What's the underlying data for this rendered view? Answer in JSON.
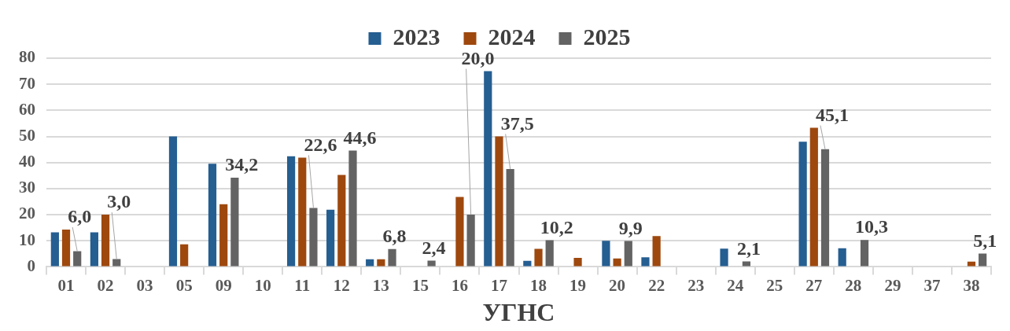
{
  "chart_data": {
    "type": "bar",
    "xlabel": "УГНС",
    "categories": [
      "01",
      "02",
      "03",
      "05",
      "09",
      "10",
      "11",
      "12",
      "13",
      "15",
      "16",
      "17",
      "18",
      "19",
      "20",
      "22",
      "23",
      "24",
      "25",
      "27",
      "28",
      "29",
      "37",
      "38"
    ],
    "series": [
      {
        "name": "2023",
        "color": "#255e91",
        "values": [
          13.2,
          13.2,
          null,
          50,
          39.5,
          null,
          42.4,
          21.9,
          2.9,
          null,
          null,
          75,
          2.3,
          null,
          10,
          3.7,
          null,
          7,
          null,
          48,
          7.1,
          null,
          null,
          null
        ]
      },
      {
        "name": "2024",
        "color": "#9e480e",
        "values": [
          14.3,
          20,
          null,
          8.6,
          24,
          null,
          41.9,
          35.2,
          2.9,
          null,
          26.8,
          50,
          6.9,
          3.4,
          3.2,
          11.8,
          null,
          null,
          null,
          53.3,
          null,
          null,
          null,
          2
        ]
      },
      {
        "name": "2025",
        "color": "#636363",
        "values": [
          6,
          3,
          null,
          null,
          34.2,
          null,
          22.6,
          44.6,
          6.8,
          2.4,
          20,
          37.5,
          10.2,
          null,
          9.9,
          null,
          null,
          2.1,
          null,
          45.1,
          10.3,
          null,
          null,
          5.1
        ],
        "value_labels": [
          "6,0",
          "3,0",
          null,
          null,
          "34,2",
          null,
          "22,6",
          "44,6",
          "6,8",
          "2,4",
          "20,0",
          "37,5",
          "10,2",
          null,
          "9,9",
          null,
          null,
          "2,1",
          null,
          "45,1",
          "10,3",
          null,
          null,
          "5,1"
        ]
      }
    ],
    "ylim": [
      0,
      80
    ],
    "yticks": [
      0,
      10,
      20,
      30,
      40,
      50,
      60,
      70,
      80
    ],
    "grid": "y",
    "legend": "top"
  }
}
